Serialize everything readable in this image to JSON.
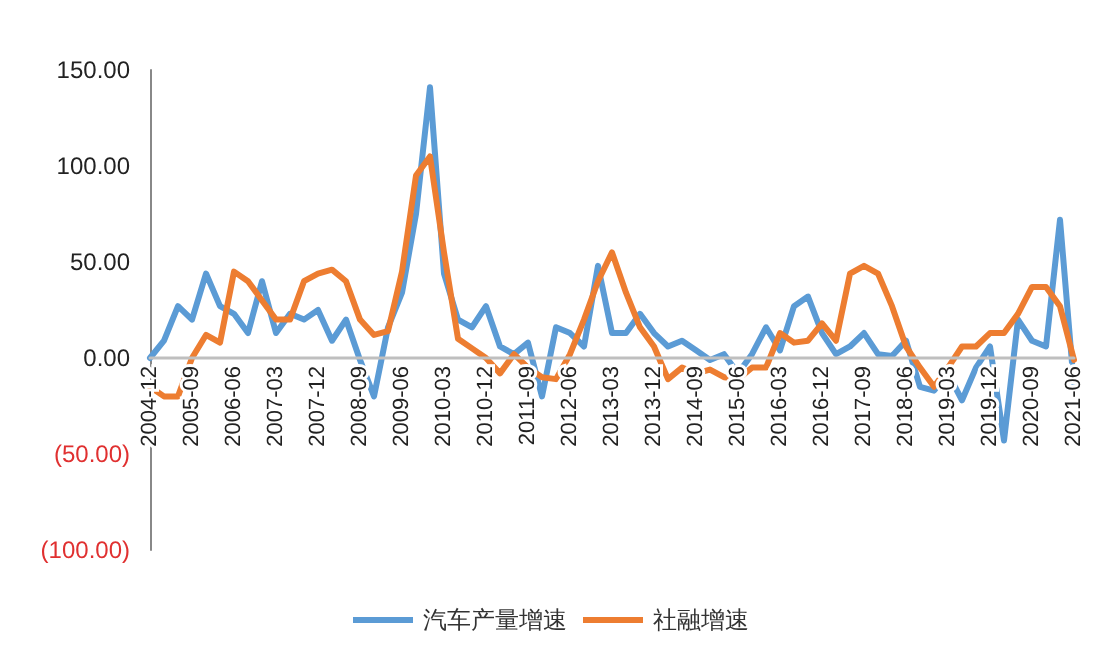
{
  "chart_data": {
    "type": "line",
    "categories": [
      "2004-12",
      null,
      null,
      "2005-09",
      null,
      null,
      "2006-06",
      null,
      null,
      "2007-03",
      null,
      null,
      "2007-12",
      null,
      null,
      "2008-09",
      null,
      null,
      "2009-06",
      null,
      null,
      "2010-03",
      null,
      null,
      "2010-12",
      null,
      null,
      "2011-09",
      null,
      null,
      "2012-06",
      null,
      null,
      "2013-03",
      null,
      null,
      "2013-12",
      null,
      null,
      "2014-09",
      null,
      null,
      "2015-06",
      null,
      null,
      "2016-03",
      null,
      null,
      "2016-12",
      null,
      null,
      "2017-09",
      null,
      null,
      "2018-06",
      null,
      null,
      "2019-03",
      null,
      null,
      "2019-12",
      null,
      null,
      "2020-09",
      null,
      null,
      "2021-06"
    ],
    "series": [
      {
        "name": "汽车产量增速",
        "color": "#5b9bd5",
        "values": [
          0,
          9,
          27,
          20,
          44,
          27,
          23,
          13,
          40,
          13,
          23,
          20,
          25,
          9,
          20,
          -1,
          -20,
          16,
          34,
          75,
          141,
          44,
          20,
          16,
          27,
          6,
          2,
          8,
          -20,
          16,
          13,
          6,
          48,
          13,
          13,
          23,
          13,
          6,
          9,
          4,
          -1,
          2,
          -8,
          2,
          16,
          4,
          27,
          32,
          13,
          2,
          6,
          13,
          2,
          1,
          9,
          -15,
          -17,
          -8,
          -22,
          -5,
          6,
          -43,
          20,
          9,
          6,
          72,
          -15
        ]
      },
      {
        "name": "社融增速",
        "color": "#ed7d31",
        "values": [
          -15,
          -20,
          -20,
          0,
          12,
          8,
          45,
          40,
          30,
          20,
          20,
          40,
          44,
          46,
          40,
          20,
          12,
          14,
          45,
          95,
          105,
          55,
          10,
          5,
          0,
          -8,
          2,
          -5,
          -10,
          -11,
          2,
          20,
          40,
          55,
          34,
          16,
          6,
          -11,
          -5,
          -8,
          -6,
          -10,
          -11,
          -5,
          -5,
          13,
          8,
          9,
          18,
          9,
          44,
          48,
          44,
          27,
          6,
          -5,
          -15,
          -5,
          6,
          6,
          13,
          13,
          23,
          37,
          37,
          27,
          -1
        ]
      }
    ],
    "ylim": [
      -100,
      150
    ],
    "yticks": [
      {
        "value": -100,
        "label": "(100.00)"
      },
      {
        "value": -50,
        "label": "(50.00)"
      },
      {
        "value": 0,
        "label": "0.00"
      },
      {
        "value": 50,
        "label": "50.00"
      },
      {
        "value": 100,
        "label": "100.00"
      },
      {
        "value": 150,
        "label": "150.00"
      }
    ],
    "grid": false,
    "legend": "bottom",
    "marker": "none",
    "line_style": "solid"
  }
}
